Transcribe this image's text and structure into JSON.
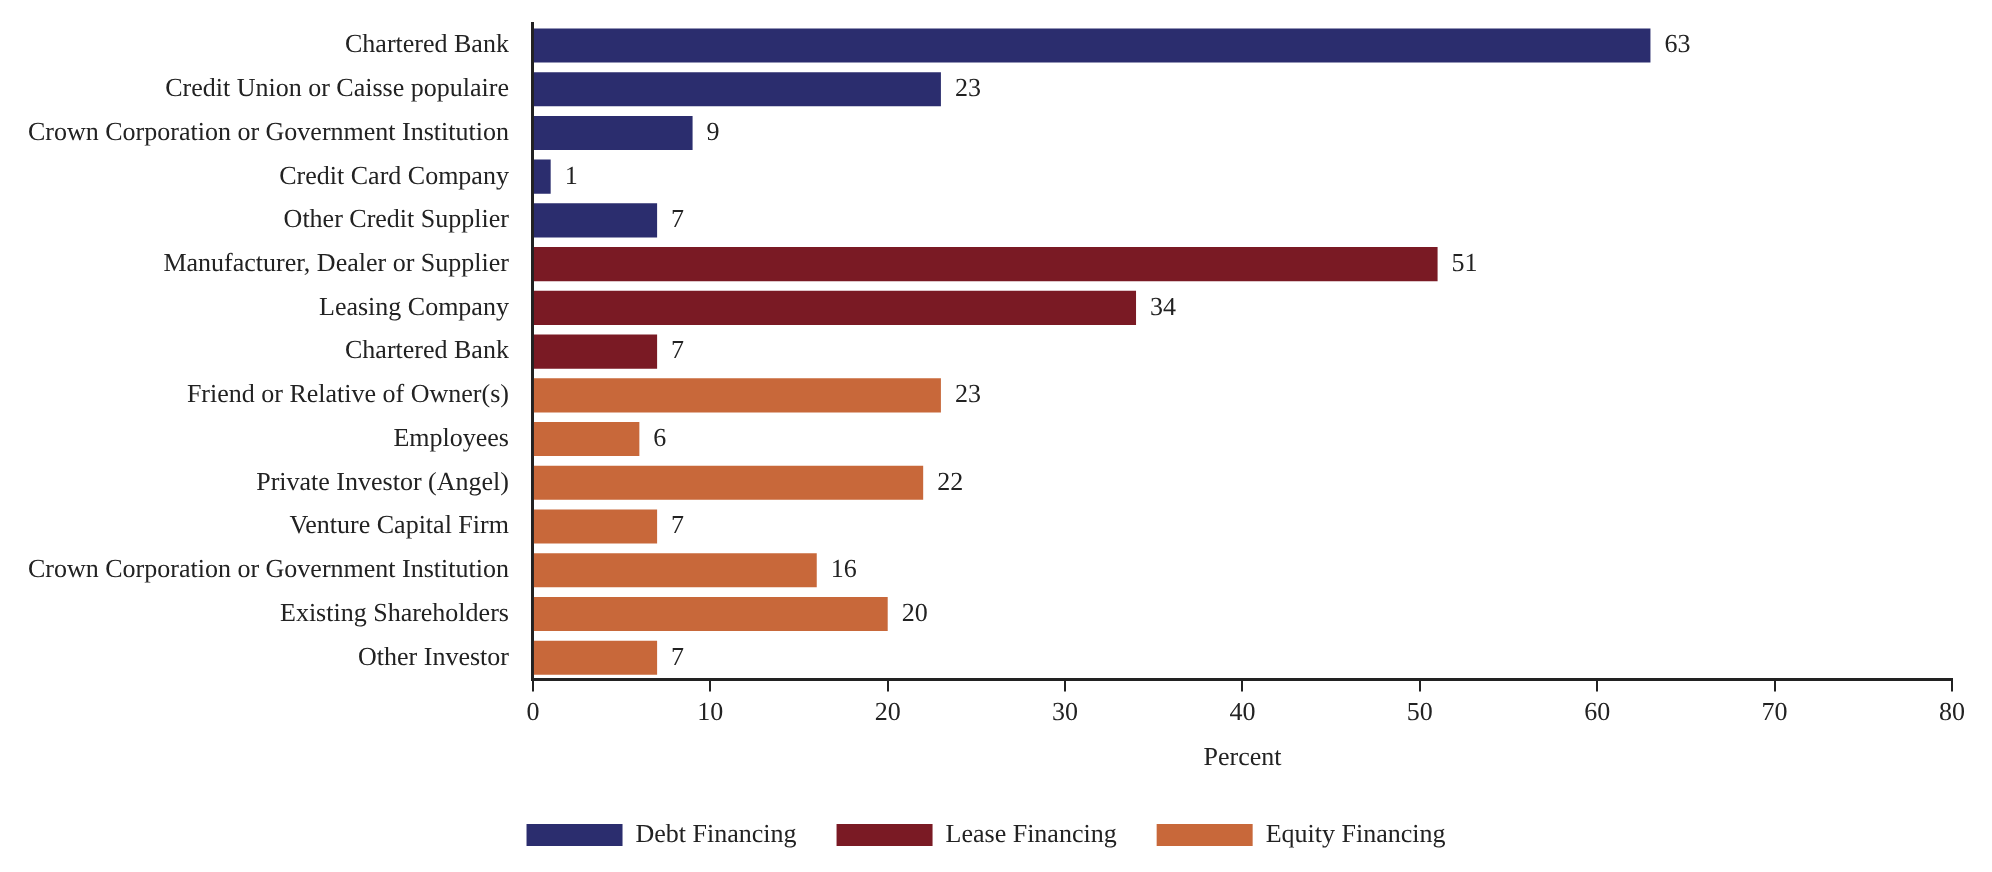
{
  "chart_data": {
    "type": "bar",
    "orientation": "horizontal",
    "stacked": true,
    "xlabel": "Percent",
    "categories": [
      "Chartered Bank",
      "Credit Union or Caisse populaire",
      "Crown Corporation or Government Institution",
      "Credit Card Company",
      "Other Credit Supplier",
      "Manufacturer, Dealer or Supplier",
      "Leasing Company",
      "Chartered Bank",
      "Friend or Relative of Owner(s)",
      "Employees",
      "Private Investor (Angel)",
      "Venture Capital Firm",
      "Crown Corporation or Government Institution",
      "Existing Shareholders",
      "Other Investor"
    ],
    "series": [
      {
        "name": "Debt Financing",
        "color": "#2b2d6e",
        "values": [
          63,
          23,
          9,
          1,
          7,
          null,
          null,
          null,
          null,
          null,
          null,
          null,
          null,
          null,
          null
        ]
      },
      {
        "name": "Lease Financing",
        "color": "#7a1a24",
        "values": [
          null,
          null,
          null,
          null,
          null,
          51,
          34,
          7,
          null,
          null,
          null,
          null,
          null,
          null,
          null
        ]
      },
      {
        "name": "Equity Financing",
        "color": "#c8683a",
        "values": [
          null,
          null,
          null,
          null,
          null,
          null,
          null,
          null,
          23,
          6,
          22,
          7,
          16,
          20,
          7
        ]
      }
    ],
    "xlim": [
      0,
      80
    ],
    "xticks": [
      0,
      10,
      20,
      30,
      40,
      50,
      60,
      70,
      80
    ],
    "grid": false,
    "legend": "bottom",
    "data_labels": true
  }
}
